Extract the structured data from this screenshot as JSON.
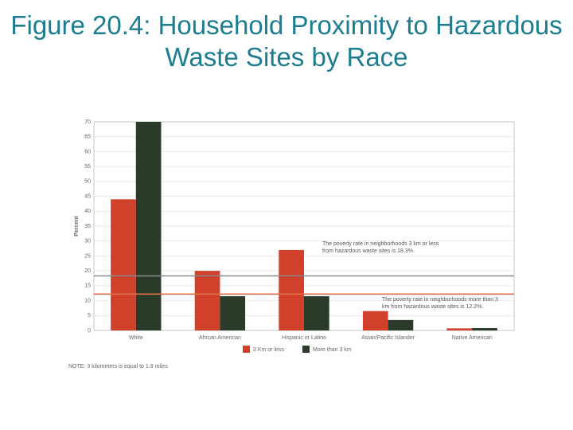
{
  "chart_data": {
    "type": "bar",
    "title": "Figure 20.4: Household Proximity to Hazardous Waste Sites by Race",
    "y_label": "Percent",
    "categories": [
      "White",
      "African American",
      "Hispanic or Latino",
      "Asian/Pacific Islander",
      "Native American"
    ],
    "series": [
      {
        "name": "3 Km or less",
        "color": "#d0402a",
        "values": [
          44,
          20,
          27,
          6.5,
          0.7
        ]
      },
      {
        "name": "More than 3 km",
        "color": "#2b3b29",
        "values": [
          70,
          11.5,
          11.5,
          3.5,
          0.8
        ]
      }
    ],
    "ylim": [
      0,
      70
    ],
    "yticks": [
      0,
      5,
      10,
      15,
      20,
      25,
      30,
      35,
      40,
      45,
      50,
      55,
      60,
      65,
      70
    ],
    "grid": true,
    "reference_lines": [
      {
        "value": 18.3,
        "color": "#8a8a8a",
        "label": "The poverty rate in neighborhoods 3 km or less from hazardous waste sites is 18.3%."
      },
      {
        "value": 12.2,
        "color": "#e0704a",
        "label": "The poverty rate in neighborhoods more than 3 km from hazardous waste sites is 12.2%."
      }
    ],
    "note": "NOTE: 3 kilometers is equal to 1.9 miles"
  }
}
